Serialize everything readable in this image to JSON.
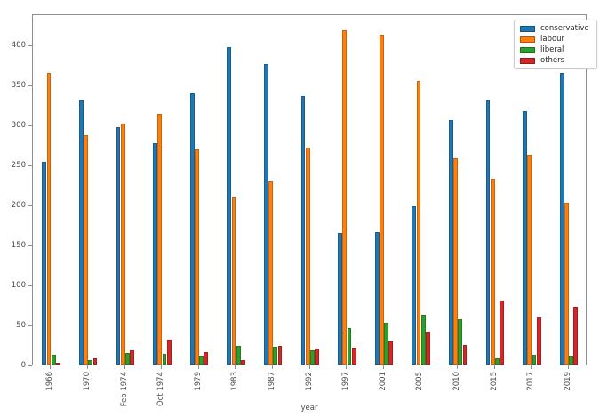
{
  "chart_data": {
    "type": "bar",
    "title": "",
    "xlabel": "year",
    "ylabel": "",
    "grid": false,
    "legend_position": "upper right",
    "ylim": [
      0,
      438.9
    ],
    "yticks": [
      0,
      50,
      100,
      150,
      200,
      250,
      300,
      350,
      400
    ],
    "categories": [
      "1966",
      "1970",
      "Feb 1974",
      "Oct 1974",
      "1979",
      "1983",
      "1987",
      "1992",
      "1997",
      "2001",
      "2005",
      "2010",
      "2015",
      "2017",
      "2019"
    ],
    "series": [
      {
        "name": "conservative",
        "color": "#1f77b4",
        "values": [
          253,
          330,
          297,
          277,
          339,
          397,
          376,
          336,
          165,
          166,
          198,
          306,
          330,
          317,
          365
        ]
      },
      {
        "name": "labour",
        "color": "#ff7f0e",
        "values": [
          364,
          287,
          301,
          313,
          269,
          209,
          229,
          271,
          418,
          412,
          355,
          258,
          232,
          262,
          202
        ]
      },
      {
        "name": "liberal",
        "color": "#2ca02c",
        "values": [
          12,
          6,
          14,
          13,
          11,
          23,
          22,
          18,
          46,
          52,
          62,
          57,
          8,
          12,
          11
        ]
      },
      {
        "name": "others",
        "color": "#d62728",
        "values": [
          2,
          8,
          18,
          31,
          16,
          6,
          23,
          20,
          21,
          29,
          41,
          24,
          80,
          59,
          72
        ]
      }
    ]
  }
}
